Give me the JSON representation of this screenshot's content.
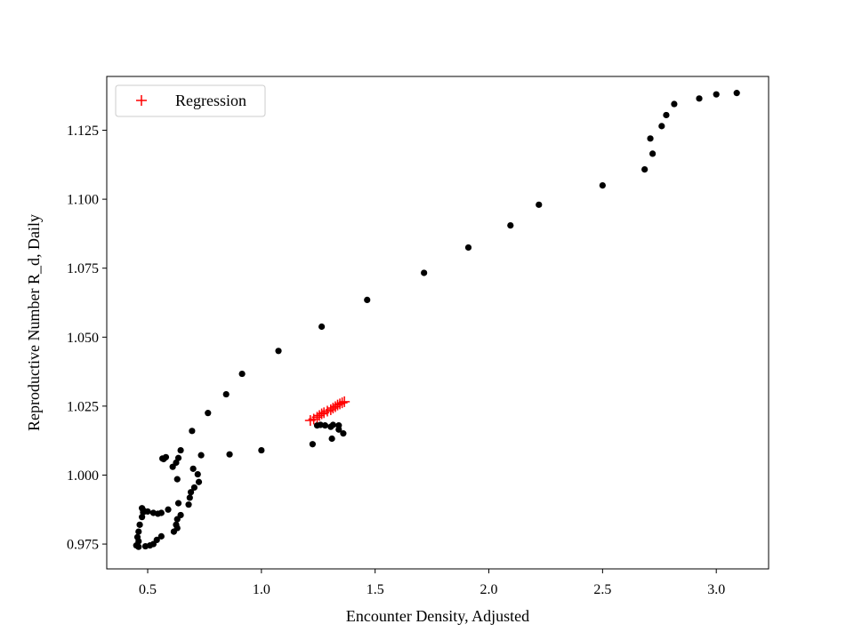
{
  "chart_data": {
    "type": "scatter",
    "title": "",
    "xlabel": "Encounter Density, Adjusted",
    "ylabel": "Reproductive Number R_d, Daily",
    "xlim": [
      0.32,
      3.23
    ],
    "ylim": [
      0.966,
      1.1445
    ],
    "xticks": [
      0.5,
      1.0,
      1.5,
      2.0,
      2.5,
      3.0
    ],
    "xtick_labels": [
      "0.5",
      "1.0",
      "1.5",
      "2.0",
      "2.5",
      "3.0"
    ],
    "yticks": [
      0.975,
      1.0,
      1.025,
      1.05,
      1.075,
      1.1,
      1.125
    ],
    "ytick_labels": [
      "0.975",
      "1.000",
      "1.025",
      "1.050",
      "1.075",
      "1.100",
      "1.125"
    ],
    "grid": false,
    "legend": {
      "position": "top-left",
      "entries": [
        {
          "label": "Regression",
          "marker": "+",
          "color": "#ff0000"
        }
      ]
    },
    "series": [
      {
        "marker": "o",
        "color": "#000000",
        "points": [
          [
            3.09,
            1.1385
          ],
          [
            3.0,
            1.138
          ],
          [
            2.925,
            1.1365
          ],
          [
            2.815,
            1.1345
          ],
          [
            2.78,
            1.1305
          ],
          [
            2.76,
            1.1265
          ],
          [
            2.71,
            1.122
          ],
          [
            2.72,
            1.1165
          ],
          [
            2.685,
            1.1108
          ],
          [
            2.5,
            1.105
          ],
          [
            2.22,
            1.098
          ],
          [
            2.095,
            1.0905
          ],
          [
            1.91,
            1.0825
          ],
          [
            1.715,
            1.0733
          ],
          [
            1.465,
            1.0635
          ],
          [
            1.265,
            1.0538
          ],
          [
            1.075,
            1.045
          ],
          [
            0.915,
            1.0367
          ],
          [
            0.845,
            1.0293
          ],
          [
            0.765,
            1.0225
          ],
          [
            0.695,
            1.016
          ],
          [
            0.645,
            1.009
          ],
          [
            0.635,
            1.0062
          ],
          [
            0.625,
            1.0045
          ],
          [
            0.61,
            1.003
          ],
          [
            0.58,
            1.0065
          ],
          [
            0.565,
            1.006
          ],
          [
            0.57,
            1.0058
          ],
          [
            0.735,
            1.0072
          ],
          [
            0.86,
            1.0075
          ],
          [
            1.0,
            1.009
          ],
          [
            1.225,
            1.0112
          ],
          [
            1.31,
            1.0132
          ],
          [
            1.36,
            1.0151
          ],
          [
            1.34,
            1.0165
          ],
          [
            1.34,
            1.018
          ],
          [
            1.315,
            1.0182
          ],
          [
            1.305,
            1.0175
          ],
          [
            1.28,
            1.018
          ],
          [
            1.26,
            1.0182
          ],
          [
            1.245,
            1.018
          ],
          [
            0.7,
            1.0023
          ],
          [
            0.72,
            1.0003
          ],
          [
            0.725,
            0.9975
          ],
          [
            0.705,
            0.9955
          ],
          [
            0.69,
            0.9938
          ],
          [
            0.685,
            0.9918
          ],
          [
            0.68,
            0.9893
          ],
          [
            0.645,
            0.9855
          ],
          [
            0.63,
            0.984
          ],
          [
            0.625,
            0.982
          ],
          [
            0.63,
            0.9808
          ],
          [
            0.615,
            0.9795
          ],
          [
            0.63,
            0.9985
          ],
          [
            0.635,
            0.9898
          ],
          [
            0.59,
            0.9875
          ],
          [
            0.56,
            0.9863
          ],
          [
            0.545,
            0.986
          ],
          [
            0.525,
            0.9863
          ],
          [
            0.5,
            0.9868
          ],
          [
            0.48,
            0.9873
          ],
          [
            0.475,
            0.988
          ],
          [
            0.48,
            0.9865
          ],
          [
            0.475,
            0.9848
          ],
          [
            0.465,
            0.982
          ],
          [
            0.46,
            0.9795
          ],
          [
            0.455,
            0.9775
          ],
          [
            0.46,
            0.976
          ],
          [
            0.45,
            0.9745
          ],
          [
            0.46,
            0.974
          ],
          [
            0.49,
            0.9742
          ],
          [
            0.51,
            0.9745
          ],
          [
            0.525,
            0.975
          ],
          [
            0.54,
            0.9765
          ],
          [
            0.56,
            0.9778
          ]
        ]
      },
      {
        "name": "Regression",
        "marker": "+",
        "color": "#ff0000",
        "points": [
          [
            1.215,
            1.0198
          ],
          [
            1.23,
            1.0203
          ],
          [
            1.245,
            1.021
          ],
          [
            1.255,
            1.0216
          ],
          [
            1.265,
            1.0222
          ],
          [
            1.275,
            1.0226
          ],
          [
            1.29,
            1.0232
          ],
          [
            1.305,
            1.0237
          ],
          [
            1.315,
            1.0243
          ],
          [
            1.325,
            1.0248
          ],
          [
            1.335,
            1.0254
          ],
          [
            1.345,
            1.0258
          ],
          [
            1.355,
            1.0262
          ],
          [
            1.365,
            1.0266
          ]
        ]
      }
    ]
  }
}
